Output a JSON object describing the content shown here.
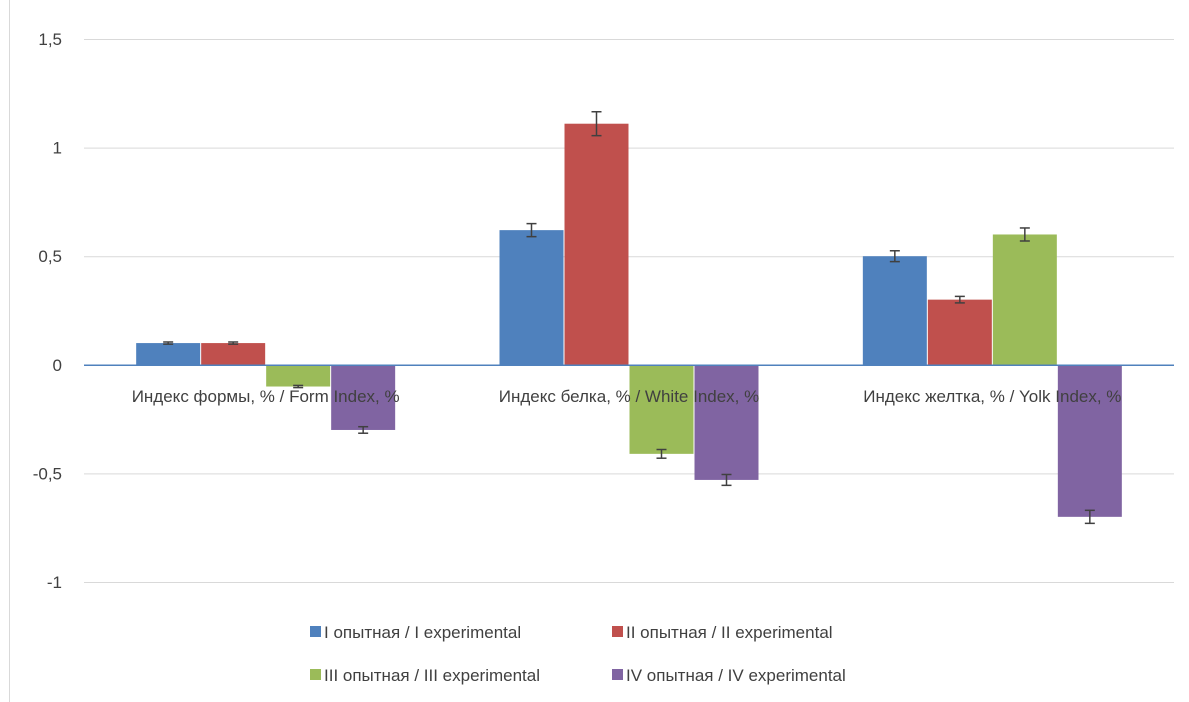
{
  "chart_data": {
    "type": "bar",
    "title": "",
    "xlabel": "",
    "ylabel": "",
    "ylim": [
      -1,
      1.5
    ],
    "y_ticks": [
      {
        "value": 1.5,
        "label": "1,5"
      },
      {
        "value": 1,
        "label": "1"
      },
      {
        "value": 0.5,
        "label": "0,5"
      },
      {
        "value": 0,
        "label": "0"
      },
      {
        "value": -0.5,
        "label": "-0,5"
      },
      {
        "value": -1,
        "label": "-1"
      }
    ],
    "grid": true,
    "legend_position": "bottom",
    "categories": [
      "Индекс формы, % / Form Index, %",
      "Индекс белка, % / White Index, %",
      "Индекс желтка, % / Yolk Index, %"
    ],
    "series": [
      {
        "name": "I опытная / I experimental",
        "color": "#4f81bd",
        "values": [
          0.1,
          0.62,
          0.5
        ],
        "errors": [
          0.005,
          0.03,
          0.025
        ]
      },
      {
        "name": "II опытная / II experimental",
        "color": "#c0504d",
        "values": [
          0.1,
          1.11,
          0.3
        ],
        "errors": [
          0.005,
          0.055,
          0.015
        ]
      },
      {
        "name": "III опытная / III experimental",
        "color": "#9bbb59",
        "values": [
          -0.1,
          -0.41,
          0.6
        ],
        "errors": [
          0.005,
          0.02,
          0.03
        ]
      },
      {
        "name": "IV опытная / IV experimental",
        "color": "#8064a2",
        "values": [
          -0.3,
          -0.53,
          -0.7
        ],
        "errors": [
          0.015,
          0.025,
          0.03
        ]
      }
    ]
  }
}
